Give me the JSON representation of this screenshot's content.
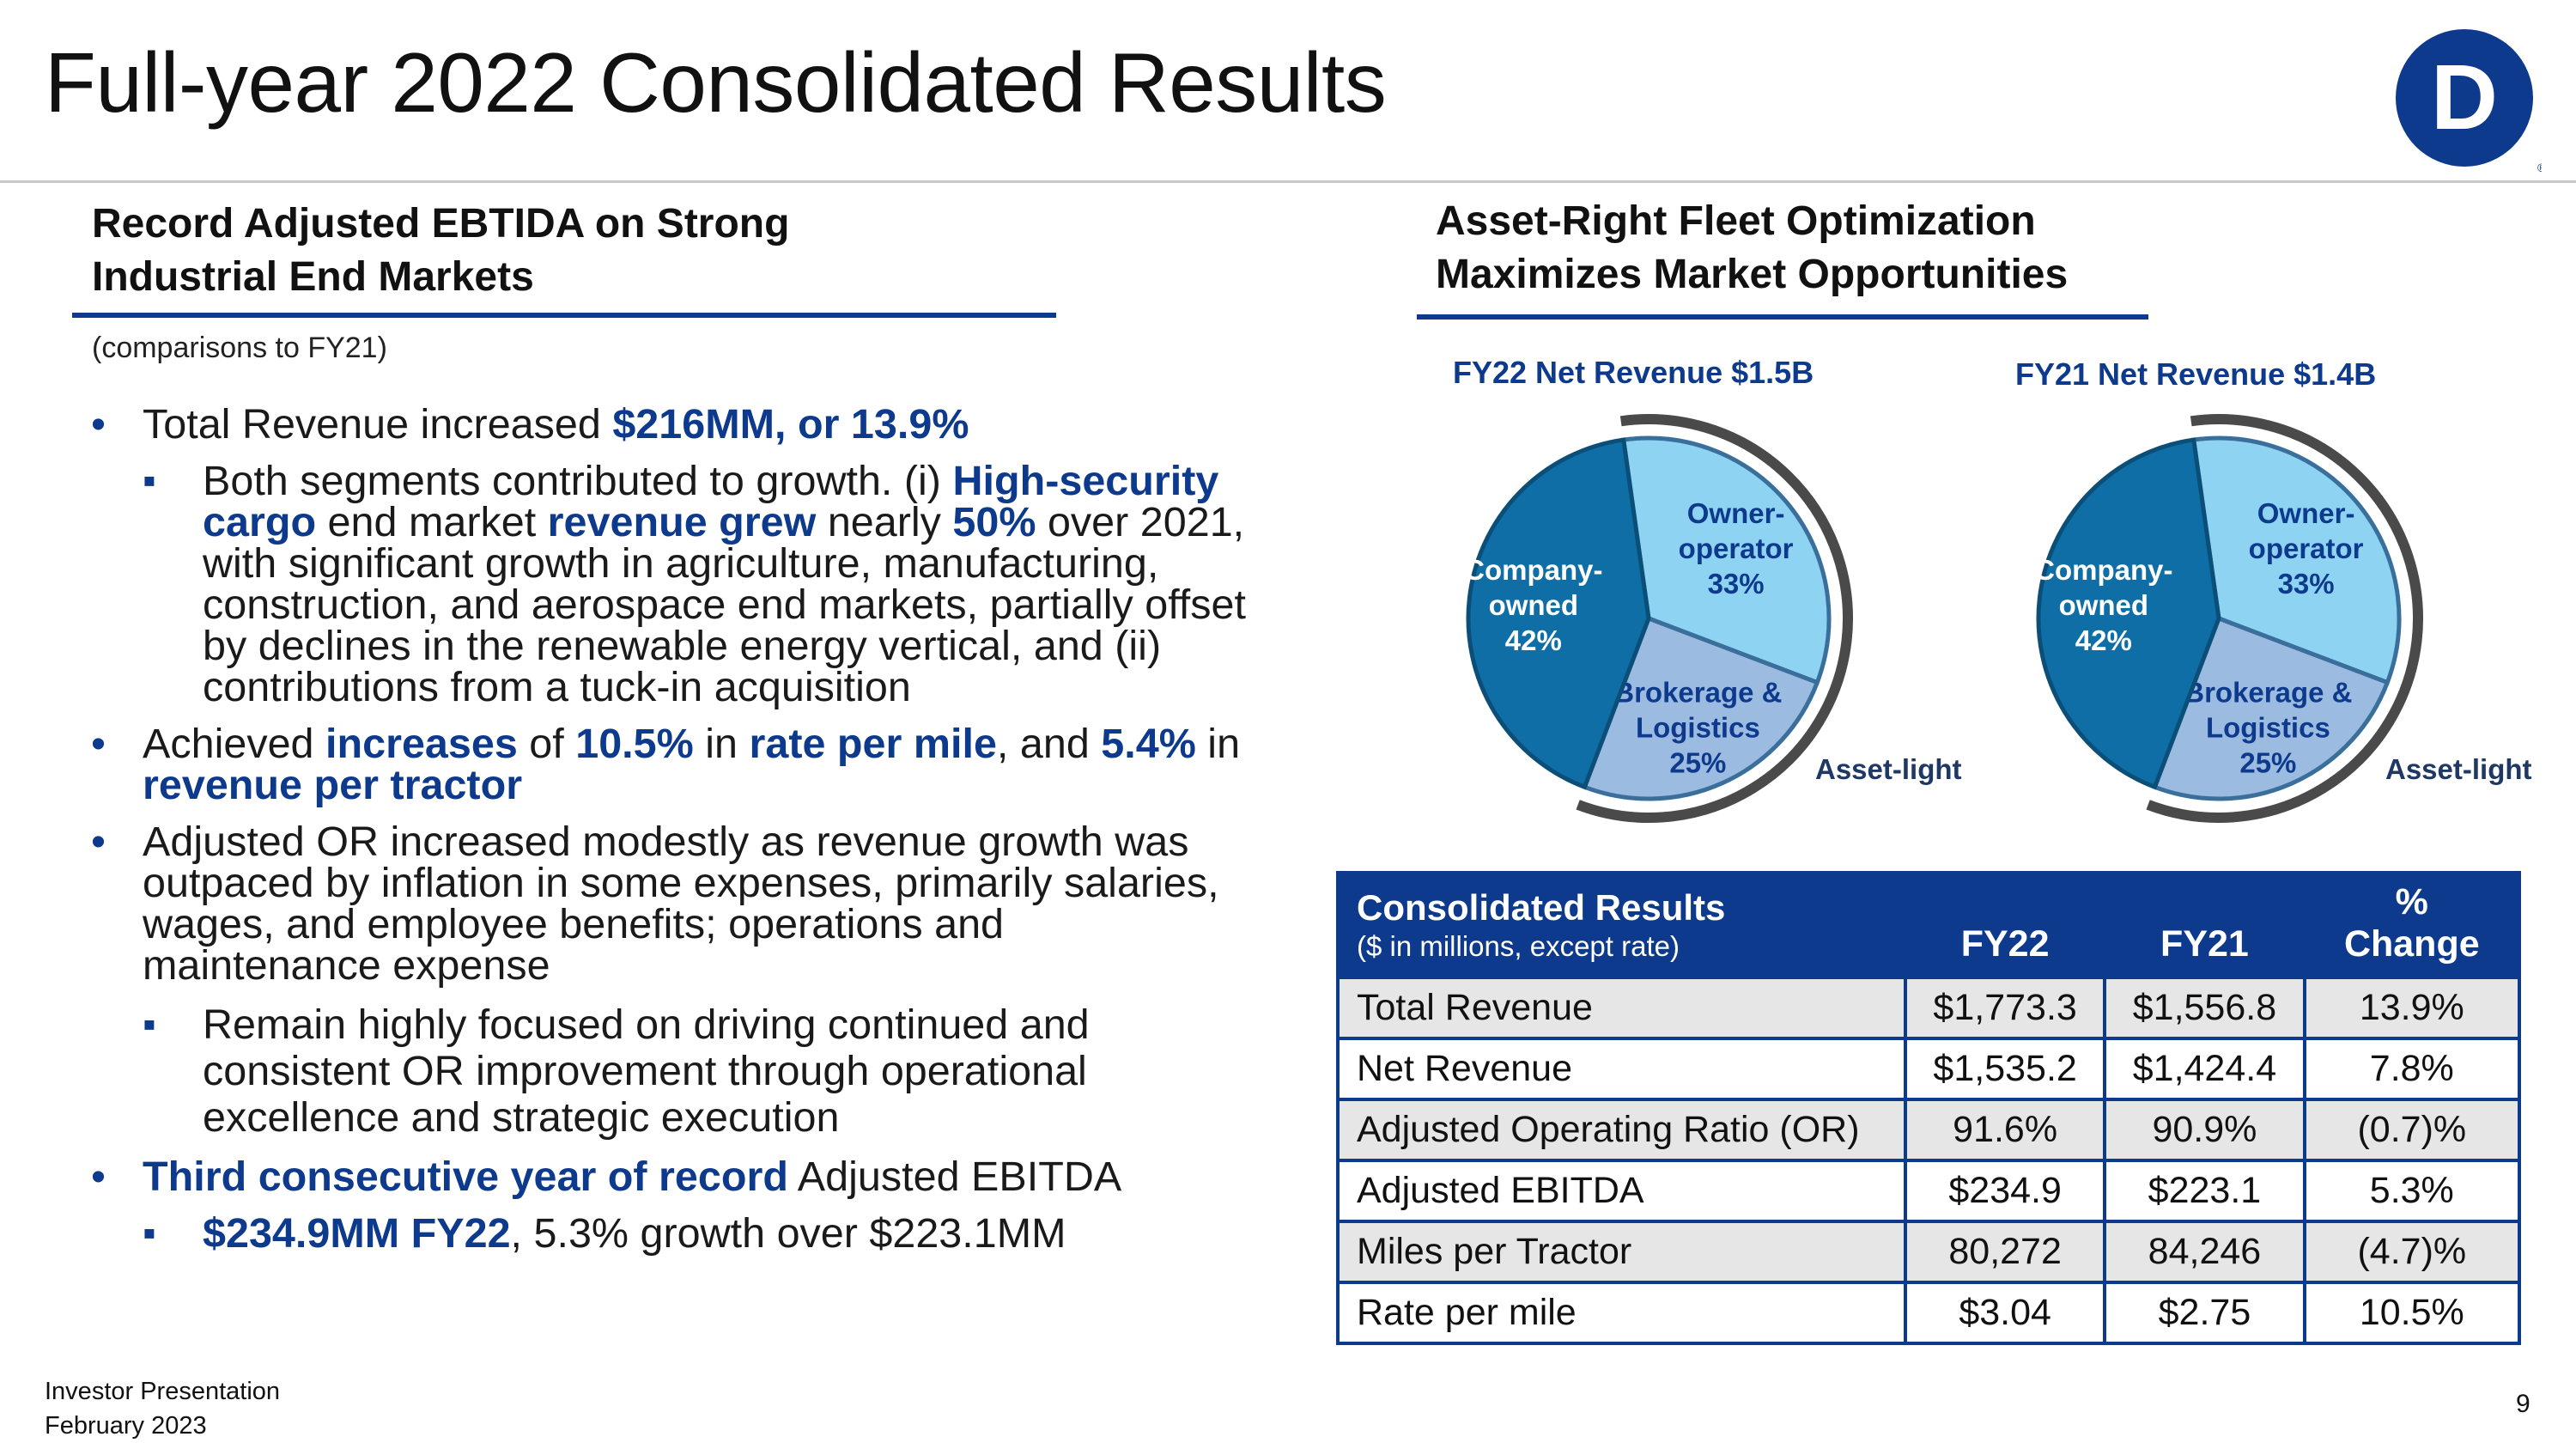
{
  "slide": {
    "title": "Full-year 2022 Consolidated Results",
    "page_number": "9",
    "logo_letter": "D",
    "footer": [
      "Investor Presentation",
      "February 2023"
    ]
  },
  "left": {
    "heading_lines": [
      "Record Adjusted EBTIDA on Strong",
      "Industrial End Markets"
    ],
    "note": "(comparisons to FY21)",
    "bullets": {
      "b1": [
        "Total Revenue increased ",
        "$216MM, or 13.9%"
      ],
      "b1_sub": [
        "Both segments contributed to growth. (i) ",
        "High-security cargo",
        " end market ",
        "revenue grew",
        " nearly ",
        "50%",
        " over 2021, with significant growth in agriculture, manufacturing, construction, and aerospace end markets, partially offset by declines in the renewable energy vertical, and (ii) contributions from a tuck-in acquisition"
      ],
      "b2": [
        "Achieved ",
        "increases",
        " of ",
        "10.5%",
        " in ",
        "rate per mile",
        ", and ",
        "5.4%",
        " in ",
        "revenue per tractor"
      ],
      "b3": "Adjusted OR increased modestly as revenue growth was outpaced by inflation in some expenses, primarily salaries, wages, and employee benefits; operations and maintenance expense",
      "b3_sub": "Remain highly focused on driving continued and consistent OR improvement through operational excellence and strategic execution",
      "b4": [
        "Third consecutive year of record",
        " Adjusted EBITDA"
      ],
      "b4_sub": [
        "$234.9MM FY22",
        ", 5.3% growth over $223.1MM"
      ]
    }
  },
  "right": {
    "heading_lines": [
      "Asset-Right Fleet Optimization",
      "Maximizes Market Opportunities"
    ],
    "asset_light_label": "Asset-light",
    "colors": {
      "company": "#0f6ea6",
      "owner": "#8fd3f2",
      "brokerage": "#9bbbe0",
      "arc": "#4a4a4a",
      "brand": "#0d3a8c"
    }
  },
  "chart_data": [
    {
      "type": "pie",
      "title": "FY22 Net Revenue $1.5B",
      "slices": [
        {
          "label": "Owner-operator",
          "label_lines": [
            "Owner-",
            "operator",
            "33%"
          ],
          "value": 33
        },
        {
          "label": "Brokerage & Logistics",
          "label_lines": [
            "Brokerage &",
            "Logistics",
            "25%"
          ],
          "value": 25
        },
        {
          "label": "Company-owned",
          "label_lines": [
            "Company-",
            "owned",
            "42%"
          ],
          "value": 42
        }
      ],
      "annotation": "Asset-light"
    },
    {
      "type": "pie",
      "title": "FY21 Net Revenue $1.4B",
      "slices": [
        {
          "label": "Owner-operator",
          "label_lines": [
            "Owner-",
            "operator",
            "33%"
          ],
          "value": 33
        },
        {
          "label": "Brokerage & Logistics",
          "label_lines": [
            "Brokerage &",
            "Logistics",
            "25%"
          ],
          "value": 25
        },
        {
          "label": "Company-owned",
          "label_lines": [
            "Company-",
            "owned",
            "42%"
          ],
          "value": 42
        }
      ],
      "annotation": "Asset-light"
    }
  ],
  "table": {
    "caption": "Consolidated Results",
    "subcaption": "($ in millions, except rate)",
    "headers": [
      "FY22",
      "FY21",
      "% Change"
    ],
    "rows": [
      {
        "label": "Total Revenue",
        "fy22": "$1,773.3",
        "fy21": "$1,556.8",
        "change": "13.9%"
      },
      {
        "label": "Net Revenue",
        "fy22": "$1,535.2",
        "fy21": "$1,424.4",
        "change": "7.8%"
      },
      {
        "label": "Adjusted Operating Ratio (OR)",
        "fy22": "91.6%",
        "fy21": "90.9%",
        "change": "(0.7)%"
      },
      {
        "label": "Adjusted EBITDA",
        "fy22": "$234.9",
        "fy21": "$223.1",
        "change": "5.3%"
      },
      {
        "label": "Miles per Tractor",
        "fy22": "80,272",
        "fy21": "84,246",
        "change": "(4.7)%"
      },
      {
        "label": "Rate per mile",
        "fy22": "$3.04",
        "fy21": "$2.75",
        "change": "10.5%"
      }
    ]
  }
}
